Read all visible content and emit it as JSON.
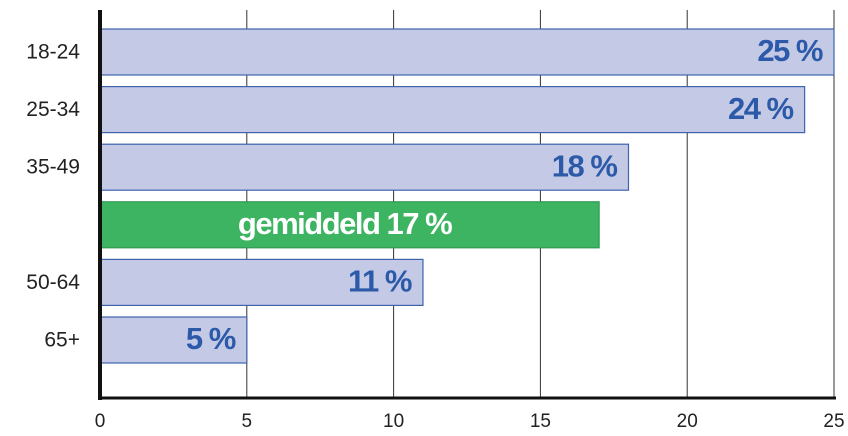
{
  "chart_data": {
    "type": "hbar",
    "categories": [
      "18-24",
      "25-34",
      "35-49",
      null,
      "50-64",
      "65+"
    ],
    "values": [
      25,
      24,
      18,
      17,
      11,
      5
    ],
    "value_labels": [
      "25 %",
      "24 %",
      "18 %",
      "gemiddeld 17 %",
      "11 %",
      "5 %"
    ],
    "colors": [
      "#c4c9e6",
      "#c4c9e6",
      "#c4c9e6",
      "#3cb462",
      "#c4c9e6",
      "#c4c9e6"
    ],
    "border_colors": [
      "#3d63ad",
      "#3d63ad",
      "#3d63ad",
      "#2f9a50",
      "#3d63ad",
      "#3d63ad"
    ],
    "label_colors": [
      "#2c5aa8",
      "#2c5aa8",
      "#2c5aa8",
      "#ffffff",
      "#2c5aa8",
      "#2c5aa8"
    ],
    "xlim": [
      0,
      25
    ],
    "xticks": [
      0,
      5,
      10,
      15,
      20,
      25
    ],
    "grid": true
  }
}
